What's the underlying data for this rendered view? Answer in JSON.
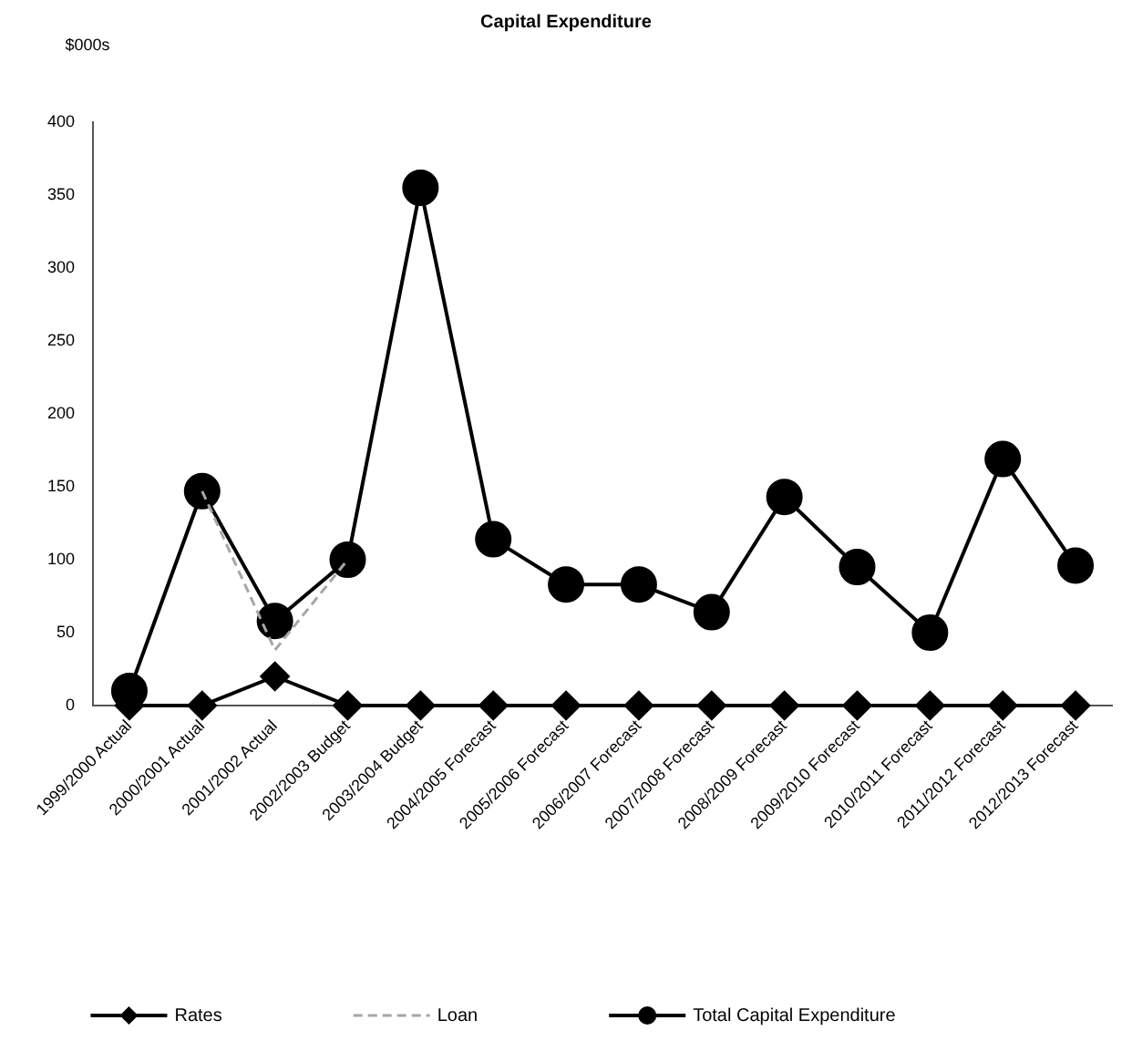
{
  "chart_data": {
    "type": "line",
    "title": "Capital Expenditure",
    "ylabel": "$000s",
    "categories": [
      "1999/2000 Actual",
      "2000/2001 Actual",
      "2001/2002 Actual",
      "2002/2003 Budget",
      "2003/2004 Budget",
      "2004/2005 Forecast",
      "2005/2006 Forecast",
      "2006/2007 Forecast",
      "2007/2008 Forecast",
      "2008/2009 Forecast",
      "2009/2010 Forecast",
      "2010/2011 Forecast",
      "2011/2012 Forecast",
      "2012/2013 Forecast"
    ],
    "series": [
      {
        "name": "Rates",
        "color": "#000000",
        "marker": "diamond",
        "line_style": "solid",
        "values": [
          0,
          0,
          20,
          0,
          0,
          0,
          0,
          0,
          0,
          0,
          0,
          0,
          0,
          0
        ]
      },
      {
        "name": "Loan",
        "color": "#a6a6a6",
        "marker": "none",
        "line_style": "dashed",
        "values": [
          null,
          147,
          38,
          100,
          null,
          null,
          null,
          null,
          null,
          null,
          null,
          null,
          null,
          null
        ]
      },
      {
        "name": "Total Capital Expenditure",
        "color": "#000000",
        "marker": "circle",
        "line_style": "solid",
        "values": [
          10,
          147,
          58,
          100,
          355,
          114,
          83,
          83,
          64,
          143,
          95,
          50,
          169,
          96
        ]
      }
    ],
    "ylim": [
      0,
      400
    ],
    "yticks": [
      0,
      50,
      100,
      150,
      200,
      250,
      300,
      350,
      400
    ],
    "legend": "bottom"
  }
}
